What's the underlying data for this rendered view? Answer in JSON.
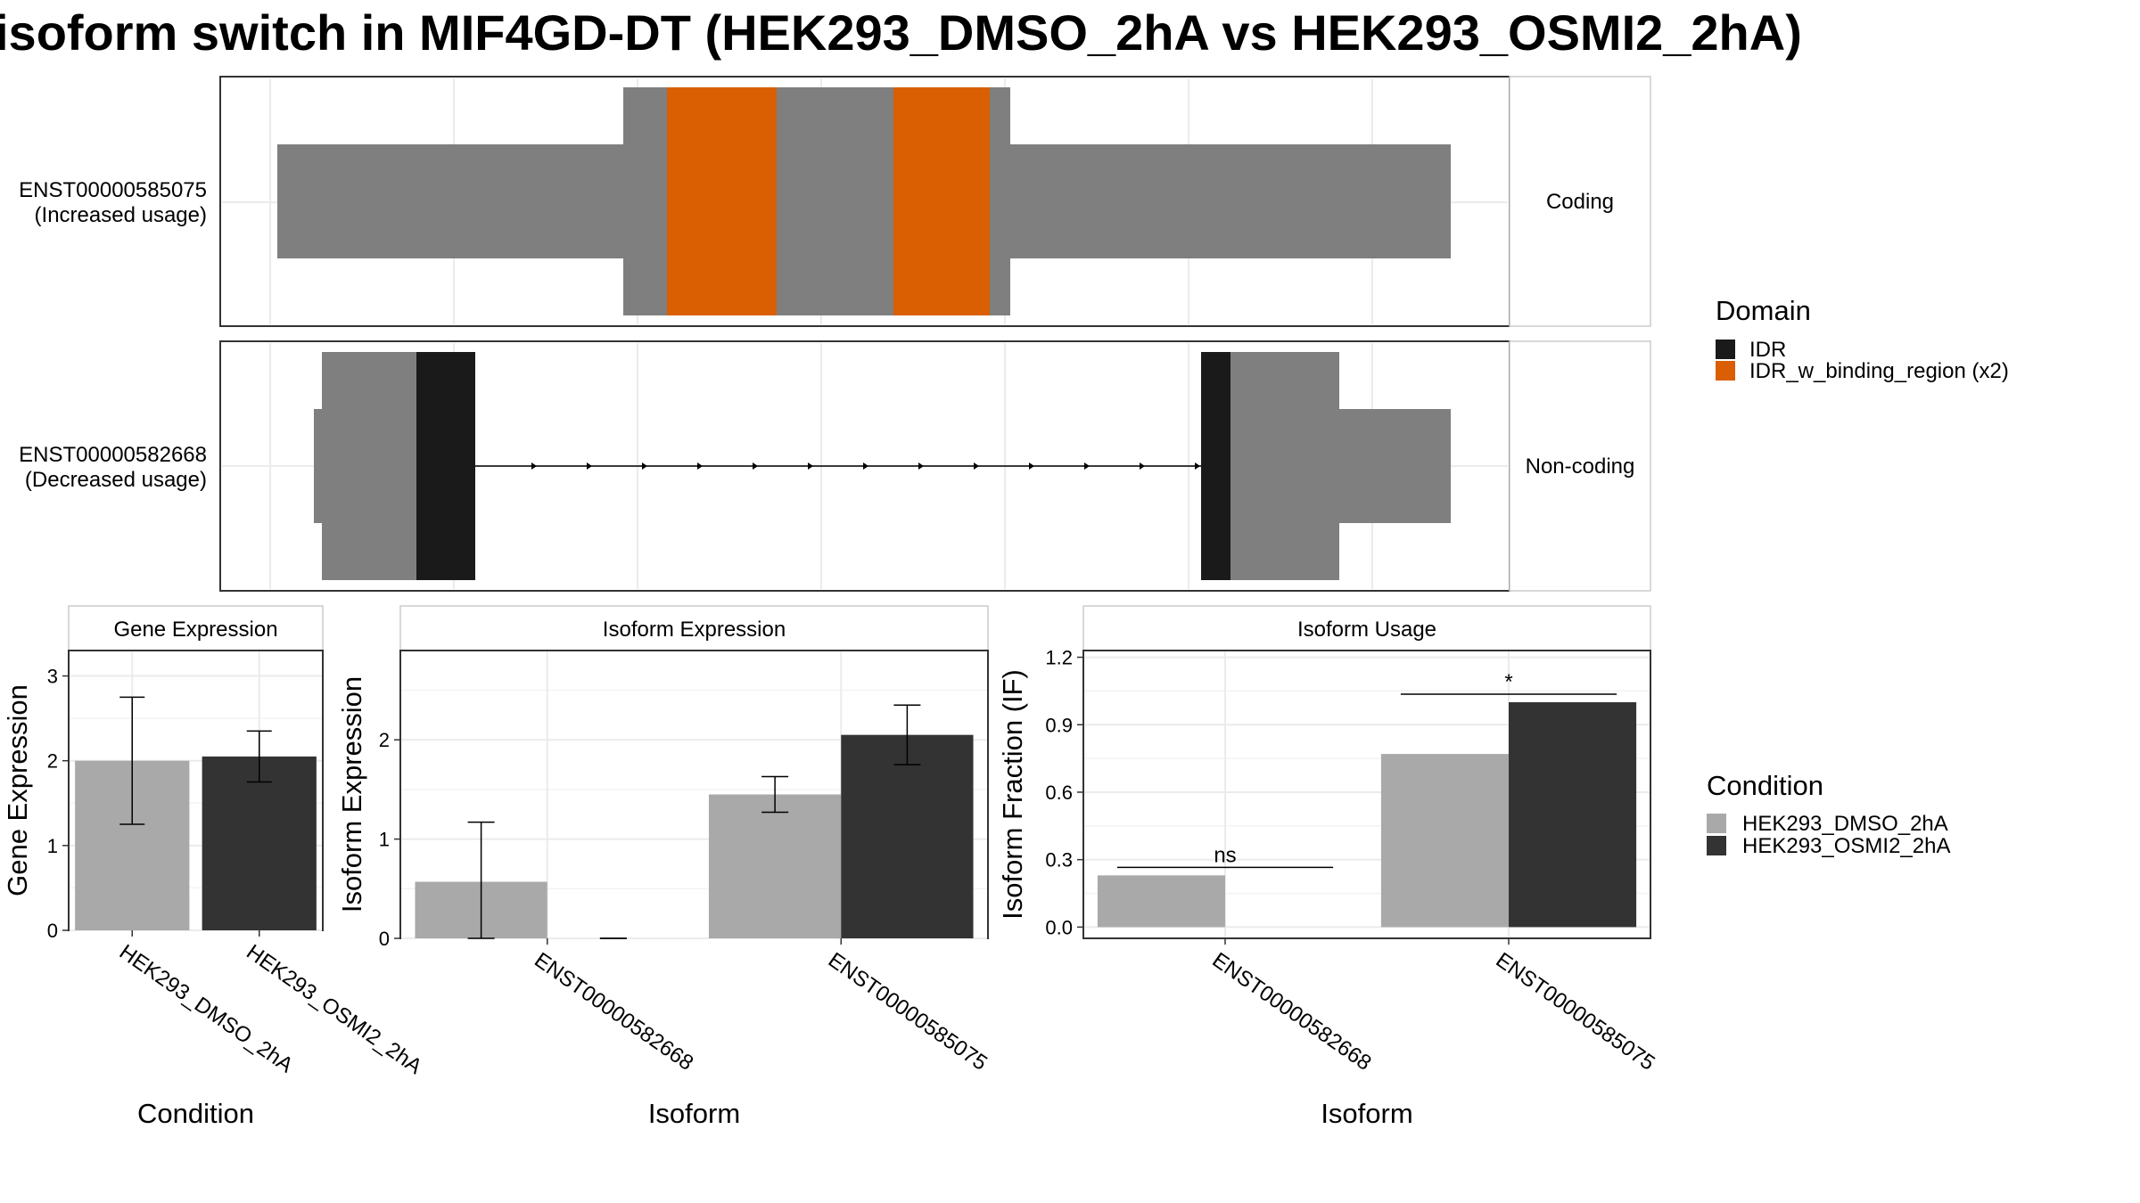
{
  "title": "isoform switch in MIF4GD-DT (HEK293_DMSO_2hA vs HEK293_OSMI2_2hA)",
  "colors": {
    "exon": "#7f7f7f",
    "idr": "#1a1a1a",
    "idr_binding": "#d95f02",
    "dmso": "#a9a9a9",
    "osmi2": "#333333",
    "grid": "#ebebeb",
    "strip": "#ffffff",
    "border": "#333333"
  },
  "transcripts": [
    {
      "id": "ENST00000585075",
      "label_line1": "ENST00000585075",
      "label_line2": "(Increased usage)",
      "strip_label": "Coding",
      "coding": true
    },
    {
      "id": "ENST00000582668",
      "label_line1": "ENST00000582668",
      "label_line2": "(Decreased usage)",
      "strip_label": "Non-coding",
      "coding": false
    }
  ],
  "domain_legend": {
    "title": "Domain",
    "items": [
      {
        "label": "IDR",
        "color": "#1a1a1a"
      },
      {
        "label": "IDR_w_binding_region (x2)",
        "color": "#d95f02"
      }
    ]
  },
  "condition_legend": {
    "title": "Condition",
    "items": [
      {
        "label": "HEK293_DMSO_2hA",
        "color": "#a9a9a9"
      },
      {
        "label": "HEK293_OSMI2_2hA",
        "color": "#333333"
      }
    ]
  },
  "chart_data": [
    {
      "type": "bar",
      "title": "Gene Expression",
      "xlabel": "Condition",
      "ylabel": "Gene Expression",
      "categories": [
        "HEK293_DMSO_2hA",
        "HEK293_OSMI2_2hA"
      ],
      "values": [
        2.0,
        2.05
      ],
      "error_low": [
        1.25,
        1.75
      ],
      "error_high": [
        2.75,
        2.35
      ],
      "ylim": [
        0,
        3.3
      ],
      "yticks": [
        0,
        1,
        2,
        3
      ],
      "ytick_labels": [
        "0",
        "1",
        "2",
        "3"
      ]
    },
    {
      "type": "bar",
      "title": "Isoform Expression",
      "xlabel": "Isoform",
      "ylabel": "Isoform Expression",
      "categories": [
        "ENST00000582668",
        "ENST00000585075"
      ],
      "series": [
        {
          "name": "HEK293_DMSO_2hA",
          "values": [
            0.57,
            1.45
          ],
          "error_low": [
            0.0,
            1.27
          ],
          "error_high": [
            1.17,
            1.63
          ]
        },
        {
          "name": "HEK293_OSMI2_2hA",
          "values": [
            0.0,
            2.05
          ],
          "error_low": [
            0.0,
            1.75
          ],
          "error_high": [
            0.0,
            2.35
          ]
        }
      ],
      "ylim": [
        0,
        2.9
      ],
      "yticks": [
        0,
        1,
        2
      ],
      "ytick_labels": [
        "0",
        "1",
        "2"
      ]
    },
    {
      "type": "bar",
      "title": "Isoform Usage",
      "xlabel": "Isoform",
      "ylabel": "Isoform Fraction (IF)",
      "categories": [
        "ENST00000582668",
        "ENST00000585075"
      ],
      "series": [
        {
          "name": "HEK293_DMSO_2hA",
          "values": [
            0.23,
            0.77
          ]
        },
        {
          "name": "HEK293_OSMI2_2hA",
          "values": [
            0.0,
            1.0
          ]
        }
      ],
      "significance": [
        "ns",
        "*"
      ],
      "ylim": [
        -0.05,
        1.23
      ],
      "yticks": [
        0.0,
        0.3,
        0.6,
        0.9,
        1.2
      ],
      "ytick_labels": [
        "0.0",
        "0.3",
        "0.6",
        "0.9",
        "1.2"
      ]
    }
  ]
}
